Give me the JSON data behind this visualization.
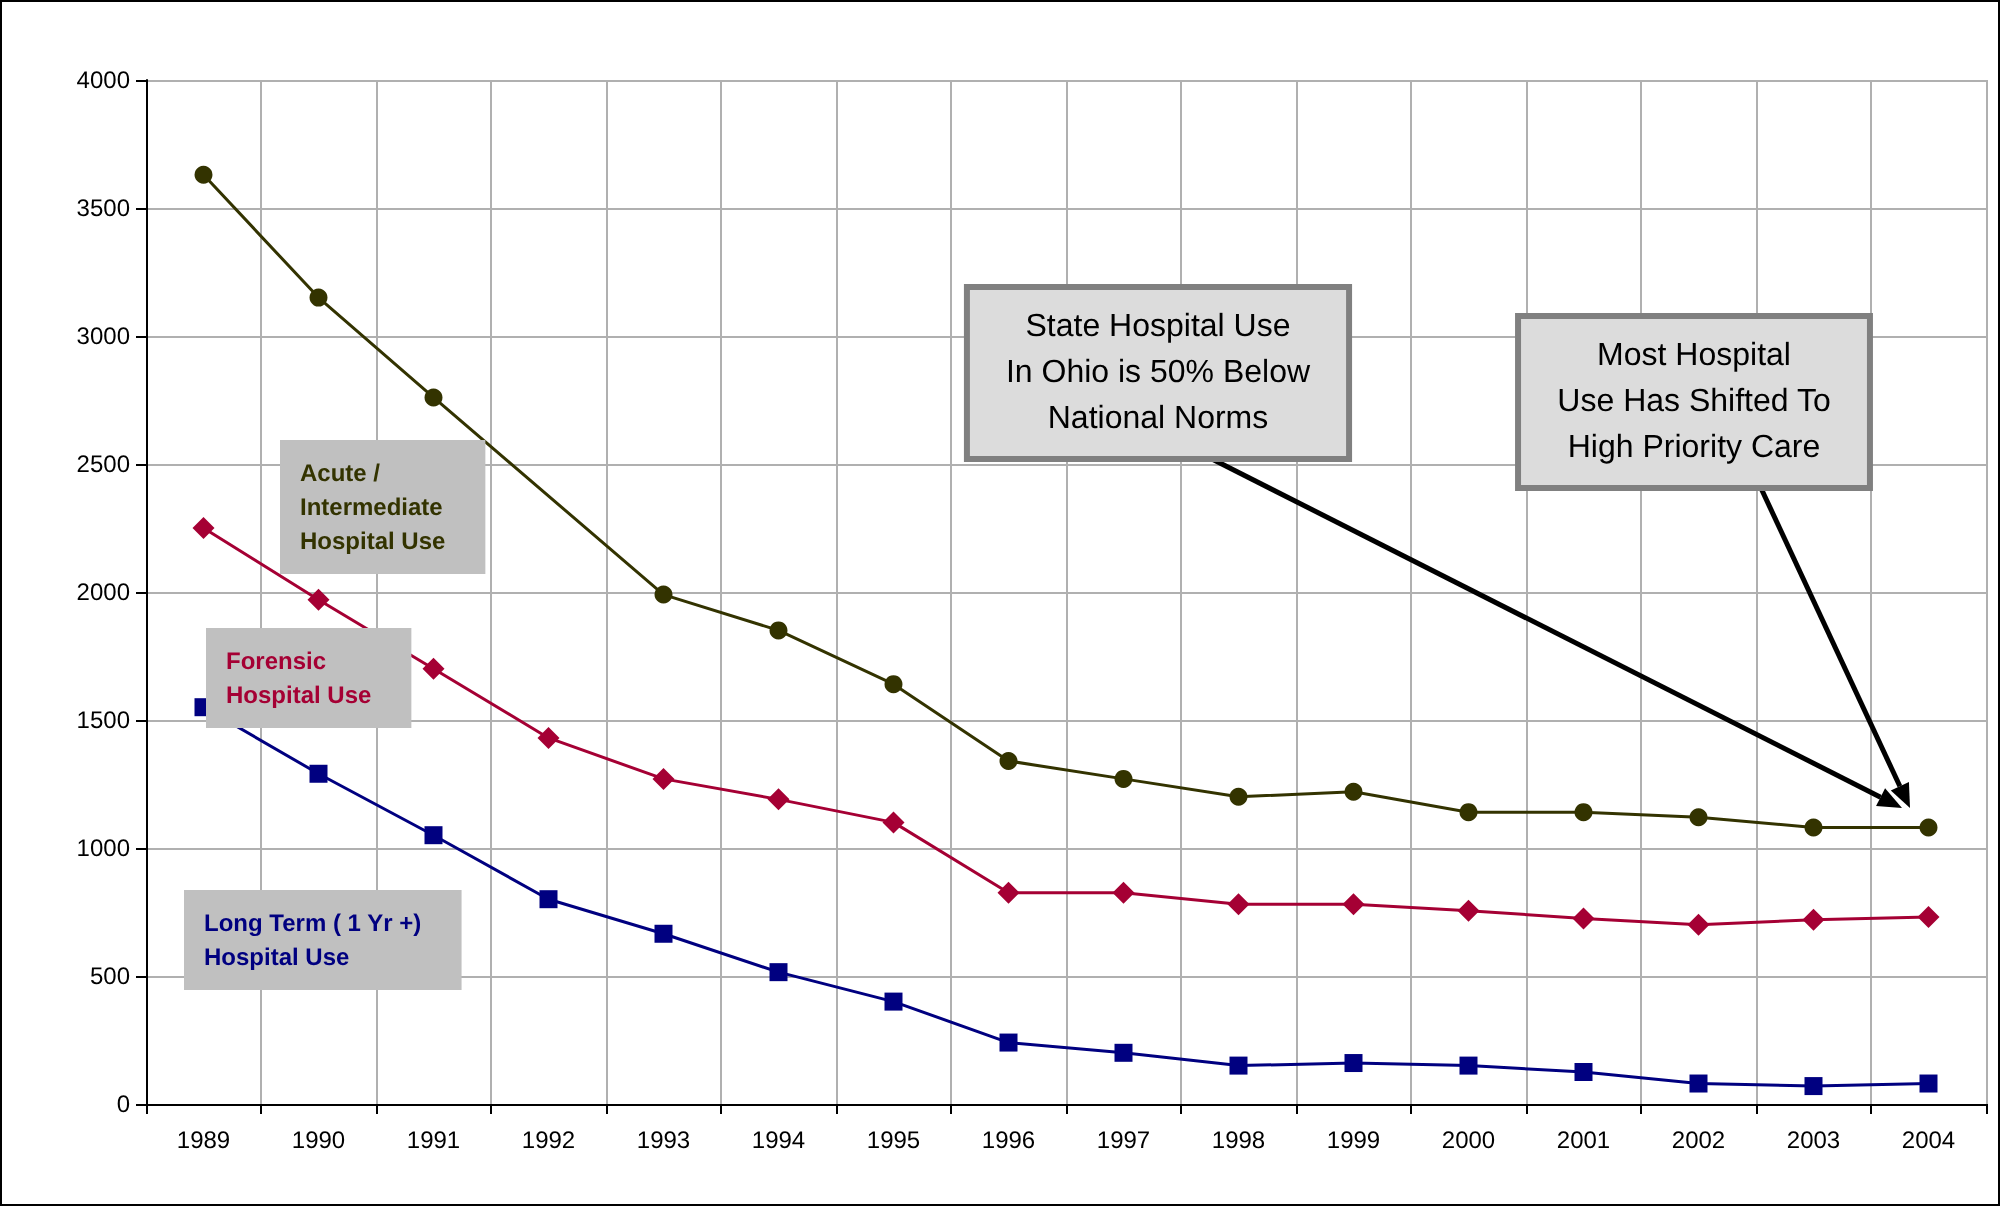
{
  "chart_data": {
    "type": "line",
    "categories": [
      "1989",
      "1990",
      "1991",
      "1992",
      "1993",
      "1994",
      "1995",
      "1996",
      "1997",
      "1998",
      "1999",
      "2000",
      "2001",
      "2002",
      "2003",
      "2004"
    ],
    "series": [
      {
        "name": "Acute /\nIntermediate\nHospital Use",
        "color": "#333300",
        "marker": "circle",
        "values": [
          3630,
          3150,
          2760,
          null,
          1990,
          1850,
          1640,
          1340,
          1270,
          1200,
          1220,
          1140,
          1140,
          1120,
          1080,
          1080
        ]
      },
      {
        "name": "Forensic\nHospital Use",
        "color": "#a50034",
        "marker": "diamond",
        "values": [
          2250,
          1970,
          1700,
          1430,
          1270,
          1190,
          1100,
          825,
          825,
          780,
          780,
          755,
          725,
          700,
          720,
          730
        ]
      },
      {
        "name": "Long Term ( 1 Yr +)\nHospital Use",
        "color": "#000080",
        "marker": "square",
        "values": [
          1550,
          1290,
          1050,
          800,
          665,
          515,
          400,
          240,
          200,
          150,
          160,
          150,
          125,
          80,
          70,
          80
        ]
      }
    ],
    "ylim": [
      0,
      4000
    ],
    "yticks": [
      0,
      500,
      1000,
      1500,
      2000,
      2500,
      3000,
      3500,
      4000
    ],
    "grid": true,
    "legend": false,
    "line_style": "solid",
    "annotations": [
      "State Hospital Use\nIn Ohio is 50% Below\nNational Norms",
      "Most Hospital\nUse Has Shifted To\nHigh Priority Care"
    ]
  }
}
